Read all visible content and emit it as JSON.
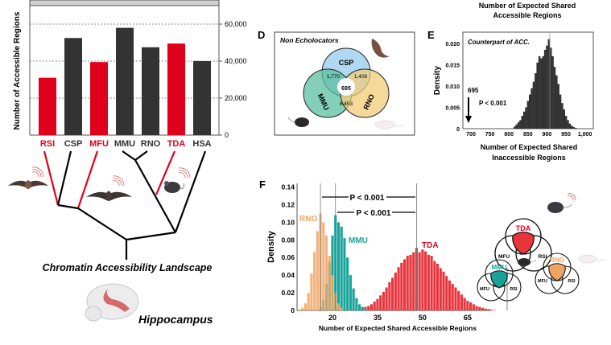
{
  "colors": {
    "echolocator": "#e0001b",
    "non_echolocator": "#333333",
    "csp": "#a9d4f2",
    "mmu": "#5bbf9f",
    "rno": "#f2cc79",
    "rno_hist": "#f0a463",
    "mmu_hist": "#17a399",
    "tda_hist": "#e8343c"
  },
  "tree": {
    "title": "Chromatin Accessibility Landscape",
    "tissue": "Hippocampus",
    "icons": [
      "bat-icon",
      "bat-icon",
      "mouse-icon",
      "brain-icon",
      "sound-wave-icon"
    ]
  },
  "panel_d": {
    "label": "D",
    "title": "Non Echolocators",
    "sets": [
      "CSP",
      "MMU",
      "RNO"
    ],
    "csp_mmu": "1,770",
    "csp_rno": "1,408",
    "all": "695",
    "mmu_rno": "6,453"
  },
  "panel_e": {
    "label": "E",
    "top_caption_line1": "Number of Expected Shared",
    "top_caption_line2": "Accessible Regions",
    "annotation_title": "Counterpart of ACC.",
    "observed": "695",
    "p_value": "P < 0.001"
  },
  "panel_f": {
    "label": "F",
    "p_value_1": "P < 0.001",
    "p_value_2": "P < 0.001",
    "venns": [
      {
        "top": "TDA",
        "left": "MFU",
        "right": "RSI"
      },
      {
        "top": "MMU",
        "left": "MFU",
        "right": "RSI"
      },
      {
        "top": "RNO",
        "left": "MFU",
        "right": "RSI"
      }
    ]
  },
  "chart_data": [
    {
      "type": "bar",
      "ylabel": "Number of Accessible Regions",
      "categories": [
        "RSI",
        "CSP",
        "MFU",
        "MMU",
        "RNO",
        "TDA",
        "HSA"
      ],
      "values": [
        31000,
        52500,
        39500,
        58000,
        47500,
        49500,
        40000
      ],
      "echolocator": [
        true,
        false,
        true,
        false,
        false,
        true,
        false
      ],
      "ylim": [
        0,
        70000
      ],
      "yticks": [
        0,
        20000,
        40000,
        60000
      ],
      "ytick_labels": [
        "0",
        "20,000",
        "40,000",
        "60,000"
      ],
      "y_axis_side": "right",
      "grid": "dotted horizontal"
    },
    {
      "type": "histogram",
      "xlabel_line1": "Number of Expected Shared",
      "xlabel_line2": "Inaccessible Regions",
      "ylabel": "Density",
      "xlim": [
        685,
        1010
      ],
      "ylim": [
        0,
        0.022
      ],
      "xticks": [
        700,
        750,
        800,
        850,
        900,
        950,
        1000
      ],
      "xtick_labels": [
        "700",
        "750",
        "800",
        "850",
        "900",
        "950",
        "1,000"
      ],
      "yticks": [
        0,
        0.005,
        0.01,
        0.015,
        0.02
      ],
      "ytick_labels": [
        "0",
        "0.005",
        "0.010",
        "0.015",
        "0.020"
      ],
      "bin_width": 5,
      "bins": [
        815,
        820,
        825,
        830,
        835,
        840,
        845,
        850,
        855,
        860,
        865,
        870,
        875,
        880,
        885,
        890,
        895,
        900,
        905,
        910,
        915,
        920,
        925,
        930,
        935,
        940,
        945,
        950,
        955,
        960,
        965,
        970,
        975
      ],
      "density": [
        0.0005,
        0.001,
        0.0015,
        0.002,
        0.003,
        0.004,
        0.005,
        0.0065,
        0.008,
        0.0095,
        0.011,
        0.013,
        0.0155,
        0.017,
        0.0165,
        0.017,
        0.0185,
        0.0195,
        0.021,
        0.019,
        0.017,
        0.0145,
        0.0125,
        0.0105,
        0.008,
        0.006,
        0.0045,
        0.003,
        0.002,
        0.0012,
        0.0007,
        0.0004,
        0.0002
      ],
      "mean_line": 905,
      "observed": 695
    },
    {
      "type": "histogram",
      "xlabel": "Number of Expected Shared Accessible Regions",
      "ylabel": "Density",
      "xlim": [
        8,
        79
      ],
      "ylim": [
        0,
        0.145
      ],
      "xticks": [
        20,
        35,
        50,
        65
      ],
      "xtick_labels": [
        "20",
        "35",
        "50",
        "65"
      ],
      "yticks": [
        0,
        0.02,
        0.04,
        0.06,
        0.08,
        0.1,
        0.12,
        0.14
      ],
      "ytick_labels": [
        "0",
        "0.02",
        "0.04",
        "0.06",
        "0.08",
        "0.10",
        "0.12",
        "0.14"
      ],
      "bin_width": 1,
      "series": [
        {
          "name": "RNO",
          "mean_line": 16,
          "x": [
            10,
            11,
            12,
            13,
            14,
            15,
            16,
            17,
            18,
            19,
            20,
            21,
            22,
            23
          ],
          "density": [
            0.003,
            0.008,
            0.02,
            0.042,
            0.066,
            0.09,
            0.11,
            0.1,
            0.085,
            0.062,
            0.04,
            0.02,
            0.008,
            0.003
          ]
        },
        {
          "name": "MMU",
          "mean_line": 21,
          "x": [
            16,
            17,
            18,
            19,
            20,
            21,
            22,
            23,
            24,
            25,
            26,
            27,
            28,
            29,
            30,
            31
          ],
          "density": [
            0.004,
            0.012,
            0.03,
            0.055,
            0.085,
            0.108,
            0.1,
            0.095,
            0.082,
            0.06,
            0.04,
            0.025,
            0.014,
            0.007,
            0.004,
            0.002
          ]
        },
        {
          "name": "TDA",
          "mean_line": 48,
          "x": [
            28,
            29,
            30,
            31,
            32,
            33,
            34,
            35,
            36,
            37,
            38,
            39,
            40,
            41,
            42,
            43,
            44,
            45,
            46,
            47,
            48,
            49,
            50,
            51,
            52,
            53,
            54,
            55,
            56,
            57,
            58,
            59,
            60,
            61,
            62,
            63,
            64,
            65,
            66,
            67,
            68,
            69,
            70,
            71,
            72,
            73,
            74
          ],
          "density": [
            0.001,
            0.002,
            0.003,
            0.004,
            0.005,
            0.007,
            0.01,
            0.013,
            0.017,
            0.021,
            0.026,
            0.032,
            0.037,
            0.043,
            0.049,
            0.054,
            0.058,
            0.062,
            0.063,
            0.066,
            0.071,
            0.066,
            0.069,
            0.067,
            0.063,
            0.062,
            0.056,
            0.053,
            0.048,
            0.044,
            0.039,
            0.034,
            0.03,
            0.026,
            0.022,
            0.018,
            0.014,
            0.011,
            0.009,
            0.007,
            0.005,
            0.004,
            0.003,
            0.002,
            0.0015,
            0.001,
            0.0005
          ]
        }
      ]
    }
  ]
}
